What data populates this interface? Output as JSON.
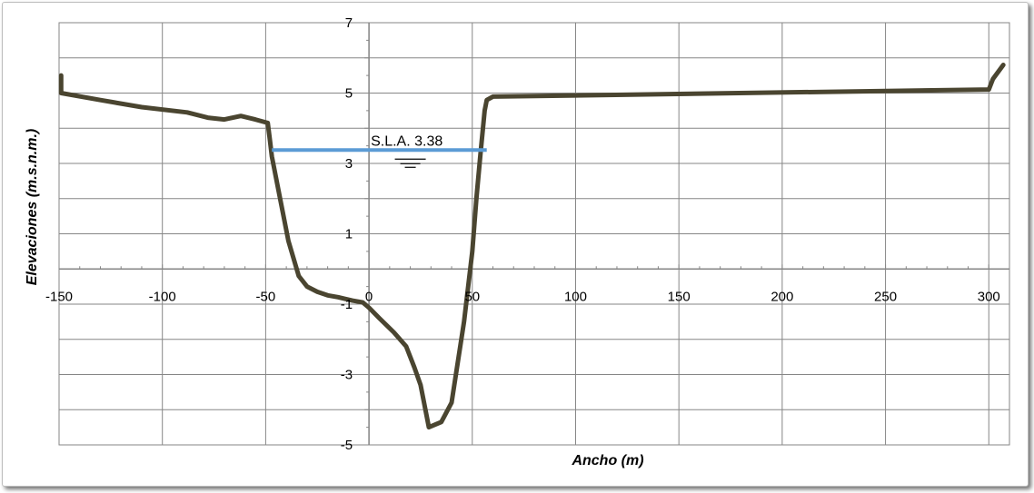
{
  "chart_data": {
    "type": "line",
    "xlabel": "Ancho (m)",
    "ylabel": "Elevaciones (m.s.n.m.)",
    "xlim": [
      -150,
      310
    ],
    "ylim": [
      -5,
      7
    ],
    "x_ticks": [
      -150,
      -100,
      -50,
      0,
      50,
      100,
      150,
      200,
      250,
      300
    ],
    "y_ticks": [
      7,
      5,
      3,
      1,
      -1,
      -3,
      -5
    ],
    "grid": true,
    "legend": "none",
    "colors": {
      "terrain": "#4a4530",
      "water": "#5b9bd5",
      "grid": "#868686"
    },
    "series": [
      {
        "x": [
          -149,
          -149,
          -130,
          -110,
          -88,
          -78,
          -70,
          -62,
          -55,
          -49,
          -48,
          -47,
          -44,
          -39,
          -34,
          -30,
          -25,
          -20,
          -15,
          -8,
          -3,
          0,
          5,
          12,
          18,
          22,
          25,
          29,
          35,
          40,
          46,
          50,
          52,
          54,
          56,
          57,
          60,
          300,
          302,
          307
        ],
        "y": [
          5.5,
          5.0,
          4.8,
          4.6,
          4.45,
          4.3,
          4.25,
          4.35,
          4.25,
          4.15,
          3.7,
          3.2,
          2.3,
          0.8,
          -0.2,
          -0.5,
          -0.65,
          -0.75,
          -0.8,
          -0.9,
          -0.95,
          -1.1,
          -1.4,
          -1.8,
          -2.2,
          -2.8,
          -3.3,
          -4.5,
          -4.35,
          -3.8,
          -1.5,
          0.5,
          2.0,
          3.3,
          4.5,
          4.8,
          4.9,
          5.1,
          5.4,
          5.8
        ]
      }
    ],
    "annotation": {
      "label": "S.L.A. 3.38",
      "level": 3.38,
      "x_range": [
        -47,
        57
      ]
    }
  }
}
